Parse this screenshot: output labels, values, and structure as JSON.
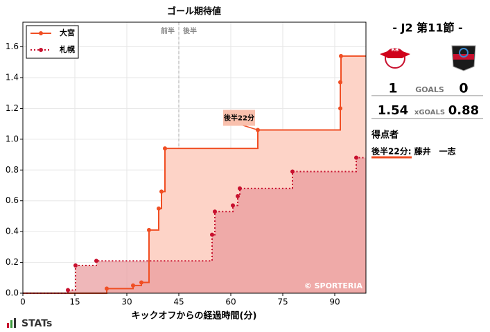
{
  "chart_data": {
    "type": "step",
    "title": "ゴール期待値",
    "x_label": "キックオフからの経過時間(分)",
    "xlim": [
      0,
      99
    ],
    "xticks": [
      0,
      15,
      30,
      45,
      60,
      75,
      90
    ],
    "ylim": [
      0,
      1.76
    ],
    "yticks": [
      {
        "value": 0,
        "label": "0.0"
      },
      0.2,
      0.4,
      0.6,
      0.8,
      {
        "value": 1,
        "label": "1.0"
      },
      1.2,
      1.4,
      1.6
    ],
    "grid": true,
    "legend": "upper left",
    "half_time": 45,
    "half_labels": [
      "前半",
      "後半"
    ],
    "annotations": [
      "後半22分"
    ],
    "credit": "© SPORTERIA",
    "series": [
      {
        "name": "大宮",
        "color": "#f04e23",
        "fill": "#fdd3c7",
        "x": [
          24.2,
          31.8,
          34.2,
          36.4,
          39.2,
          40,
          41,
          67.8,
          91.6,
          91.6,
          91.8
        ],
        "values": [
          0.03,
          0.05,
          0.07,
          0.41,
          0.55,
          0.66,
          0.94,
          1.06,
          1.2,
          1.37,
          1.54
        ]
      },
      {
        "name": "札幌",
        "color": "#c8102e",
        "fill": "#e8989b",
        "x": [
          13,
          15.2,
          21.2,
          54.6,
          55.4,
          60.6,
          62,
          62.6,
          77.8,
          96.2
        ],
        "values": [
          0.02,
          0.18,
          0.21,
          0.38,
          0.53,
          0.57,
          0.63,
          0.68,
          0.79,
          0.88
        ]
      }
    ]
  },
  "match": {
    "title": "- J2 第11節 -",
    "home_goals": "1",
    "goals_label": "GOALS",
    "away_goals": "0",
    "home_xg": "1.54",
    "xg_label": "xGOALS",
    "away_xg": "0.88",
    "scorers_title": "得点者",
    "scorers": [
      "後半22分: 藤井　一志"
    ]
  },
  "brand": "STATs"
}
